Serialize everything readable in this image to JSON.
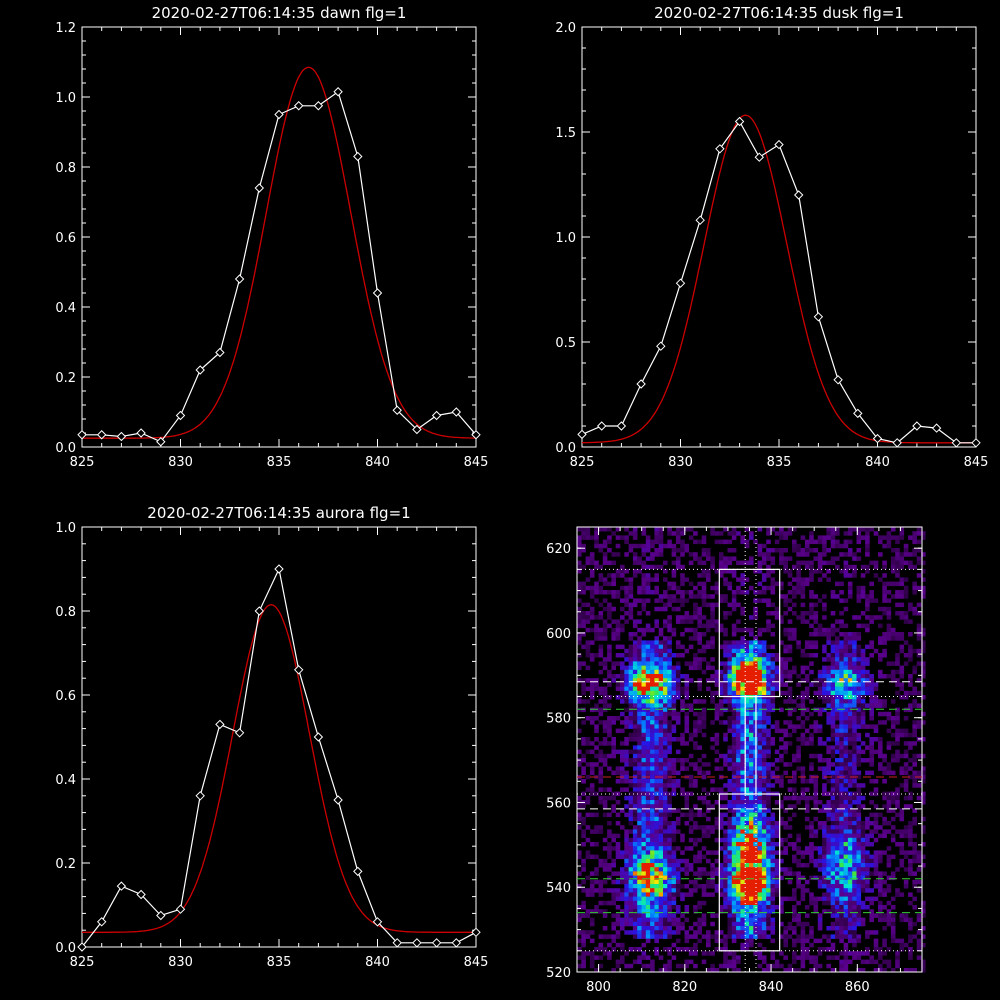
{
  "colors": {
    "background": "#000000",
    "axes": "#ffffff",
    "observed": "#ffffff",
    "fit": "#cc0000",
    "green_line": "#33cc33",
    "red_line": "#cc2222",
    "white_line": "#ffffff"
  },
  "chart_data": [
    {
      "type": "line",
      "title": "2020-02-27T06:14:35 dawn flg=1",
      "xlim": [
        825,
        845
      ],
      "ylim": [
        0,
        1.2
      ],
      "xticks": [
        825,
        830,
        835,
        840,
        845
      ],
      "yticks": [
        0.0,
        0.2,
        0.4,
        0.6,
        0.8,
        1.0,
        1.2
      ],
      "ytick_labels": [
        "0.0",
        "0.2",
        "0.4",
        "0.6",
        "0.8",
        "1.0",
        "1.2"
      ],
      "gauss": {
        "baseline": 0.025,
        "amp": 1.06,
        "center": 836.5,
        "sigma": 2.15
      },
      "series": [
        {
          "x": [
            825,
            826,
            827,
            828,
            829,
            830,
            831,
            832,
            833,
            834,
            835,
            836,
            837,
            838,
            839,
            840,
            841,
            842,
            843,
            844,
            845
          ],
          "y": [
            0.035,
            0.035,
            0.03,
            0.04,
            0.015,
            0.09,
            0.22,
            0.27,
            0.48,
            0.74,
            0.95,
            0.975,
            0.975,
            1.015,
            0.83,
            0.44,
            0.105,
            0.05,
            0.09,
            0.1,
            0.035
          ]
        }
      ]
    },
    {
      "type": "line",
      "title": "2020-02-27T06:14:35 dusk flg=1",
      "xlim": [
        825,
        845
      ],
      "ylim": [
        0,
        2.0
      ],
      "xticks": [
        825,
        830,
        835,
        840,
        845
      ],
      "yticks": [
        0.0,
        0.5,
        1.0,
        1.5,
        2.0
      ],
      "ytick_labels": [
        "0.0",
        "0.5",
        "1.0",
        "1.5",
        "2.0"
      ],
      "gauss": {
        "baseline": 0.02,
        "amp": 1.56,
        "center": 833.3,
        "sigma": 2.1
      },
      "series": [
        {
          "x": [
            825,
            826,
            827,
            828,
            829,
            830,
            831,
            832,
            833,
            834,
            835,
            836,
            837,
            838,
            839,
            840,
            841,
            842,
            843,
            844,
            845
          ],
          "y": [
            0.06,
            0.1,
            0.1,
            0.3,
            0.48,
            0.78,
            1.08,
            1.42,
            1.55,
            1.38,
            1.44,
            1.2,
            0.62,
            0.32,
            0.16,
            0.04,
            0.02,
            0.1,
            0.09,
            0.02,
            0.02
          ]
        }
      ]
    },
    {
      "type": "line",
      "title": "2020-02-27T06:14:35 aurora flg=1",
      "xlim": [
        825,
        845
      ],
      "ylim": [
        0,
        1.0
      ],
      "xticks": [
        825,
        830,
        835,
        840,
        845
      ],
      "yticks": [
        0.0,
        0.2,
        0.4,
        0.6,
        0.8,
        1.0
      ],
      "ytick_labels": [
        "0.0",
        "0.2",
        "0.4",
        "0.6",
        "0.8",
        "1.0"
      ],
      "gauss": {
        "baseline": 0.035,
        "amp": 0.78,
        "center": 834.6,
        "sigma": 1.95
      },
      "series": [
        {
          "x": [
            825,
            826,
            827,
            828,
            829,
            830,
            831,
            832,
            833,
            834,
            835,
            836,
            837,
            838,
            839,
            840,
            841,
            842,
            843,
            844,
            845
          ],
          "y": [
            0.0,
            0.06,
            0.145,
            0.125,
            0.075,
            0.09,
            0.36,
            0.53,
            0.51,
            0.8,
            0.9,
            0.66,
            0.5,
            0.35,
            0.18,
            0.06,
            0.01,
            0.01,
            0.01,
            0.01,
            0.035
          ]
        }
      ]
    },
    {
      "type": "heatmap",
      "xlim": [
        795,
        875
      ],
      "ylim": [
        520,
        625
      ],
      "xticks": [
        800,
        820,
        840,
        860
      ],
      "yticks": [
        520,
        540,
        560,
        580,
        600,
        620
      ],
      "columns": [
        {
          "x": 812,
          "width": 3.5,
          "peaks": [
            {
              "y": 588,
              "amp": 0.95,
              "s": 3
            },
            {
              "y": 542,
              "amp": 0.75,
              "s": 4
            }
          ],
          "base": 0.35
        },
        {
          "x": 835,
          "width": 3.0,
          "peaks": [
            {
              "y": 589,
              "amp": 1.3,
              "s": 3
            },
            {
              "y": 541,
              "amp": 1.2,
              "s": 4
            },
            {
              "y": 550,
              "amp": 0.6,
              "s": 4
            }
          ],
          "base": 0.45
        },
        {
          "x": 857,
          "width": 3.5,
          "peaks": [
            {
              "y": 588,
              "amp": 0.5,
              "s": 3
            },
            {
              "y": 545,
              "amp": 0.45,
              "s": 5
            }
          ],
          "base": 0.22
        }
      ],
      "boxes": [
        {
          "x0": 828,
          "x1": 842,
          "y0": 585,
          "y1": 615
        },
        {
          "x0": 828,
          "x1": 842,
          "y0": 525,
          "y1": 562
        },
        {
          "x0": 834,
          "x1": 836.5,
          "y0": 562,
          "y1": 585
        }
      ],
      "dotted_v": [
        834,
        836.5
      ],
      "dotted_h": [
        615,
        585,
        562,
        525
      ],
      "dashed_white_h": [
        588.5,
        558.5
      ],
      "dashed_green_h": [
        582,
        542,
        534
      ],
      "dashed_red_h": [
        566
      ]
    }
  ]
}
